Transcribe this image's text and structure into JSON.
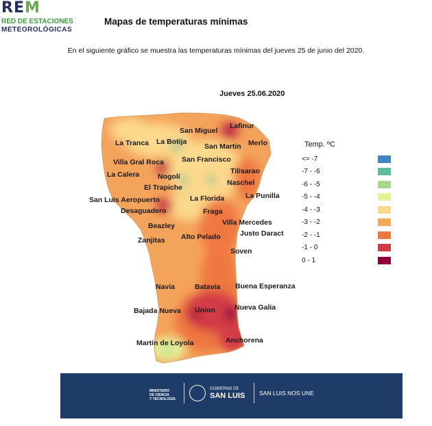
{
  "header": {
    "logo_rem": "REM",
    "logo_line1": "RED DE ESTACIONES",
    "logo_line2": "METEOROLÓGICAS",
    "title": "Mapas de temperaturas  mínimas",
    "subtitle": "En el  siguiente gráfico se muestra las temperaturas mínimas del jueves 25 de junio del 2020."
  },
  "map": {
    "date_label": "Jueves 25.06.2020",
    "cities": [
      "Lafinur",
      "San Miguel",
      "Merlo",
      "La Tranca",
      "La Botija",
      "San Martin",
      "San Francisco",
      "Villa Gral Roca",
      "Tilisarao",
      "La Calera",
      "Nogolí",
      "Naschel",
      "El Trapiche",
      "San Luis Aeropuerto",
      "La Florida",
      "La Punilla",
      "Desaguadero",
      "Fraga",
      "Villa Mercedes",
      "Beazley",
      "Justo Daract",
      "Zanjitas",
      "Alto Pelado",
      "Soven",
      "Navia",
      "Batavia",
      "Buena Esperanza",
      "Bajada Nueva",
      "Union",
      "Nueva Galia",
      "Martín de Loyola",
      "Anchorena"
    ]
  },
  "legend": {
    "title": "Temp. ºC",
    "items": [
      {
        "label": "<= -7",
        "color": "#3d85c6"
      },
      {
        "label": "-7 - -6",
        "color": "#5bbf9a"
      },
      {
        "label": "-6 - -5",
        "color": "#a6d889"
      },
      {
        "label": "-5 - -4",
        "color": "#e6f29a"
      },
      {
        "label": "-4 - -3",
        "color": "#fbd98a"
      },
      {
        "label": "-3 - -2",
        "color": "#f5a75a"
      },
      {
        "label": "-2 - -1",
        "color": "#ef7840"
      },
      {
        "label": "-1 - 0",
        "color": "#d33b44"
      },
      {
        "label": "0 - 1",
        "color": "#92003c"
      }
    ]
  },
  "footer": {
    "ministerio": [
      "MINISTERIO",
      "DE CIENCIA",
      "Y TECNOLOGÍA"
    ],
    "gobierno_small": "GOBIERNO DE",
    "gobierno_big": "SAN LUIS",
    "motto": "SAN LUIS NOS UNE",
    "background": "#1f3b67"
  }
}
